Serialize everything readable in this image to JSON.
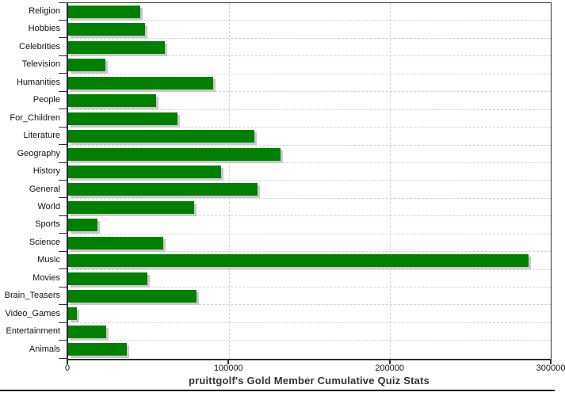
{
  "chart_data": {
    "type": "bar",
    "orientation": "horizontal",
    "title": "pruittgolf's Gold Member Cumulative Quiz Stats",
    "categories": [
      "Religion",
      "Hobbies",
      "Celebrities",
      "Television",
      "Humanities",
      "People",
      "For_Children",
      "Literature",
      "Geography",
      "History",
      "General",
      "World",
      "Sports",
      "Science",
      "Music",
      "Movies",
      "Brain_Teasers",
      "Video_Games",
      "Entertainment",
      "Animals"
    ],
    "values": [
      45000,
      48000,
      60000,
      23200,
      90300,
      54500,
      68000,
      115500,
      132000,
      95200,
      117700,
      78500,
      18400,
      59000,
      286000,
      49300,
      80000,
      5200,
      23500,
      36500
    ],
    "xlim": [
      0,
      300000
    ],
    "x_ticks": [
      0,
      100000,
      200000,
      300000
    ],
    "x_tick_labels": [
      "0",
      "100000",
      "200000",
      "300000"
    ],
    "grid": "dashed",
    "legend": "none",
    "colors": {
      "bar": "#008000",
      "bar_shadow": "#c9c9c9",
      "gridline": "#d2d2d2",
      "axis": "#2e2e2e",
      "label_text": "#121212",
      "title_text": "#333333"
    }
  }
}
